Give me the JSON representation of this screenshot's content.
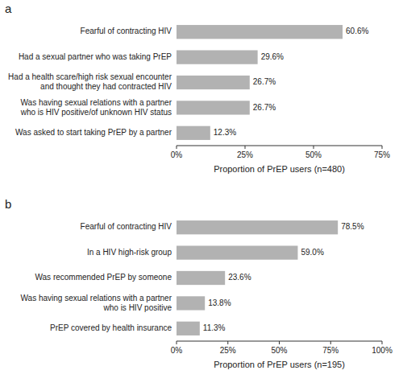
{
  "chart_data": [
    {
      "type": "bar",
      "orientation": "horizontal",
      "title": "a",
      "categories": [
        "Fearful of contracting HIV",
        "Had a sexual partner who was taking PrEP",
        "Had a health scare/high risk sexual encounter\nand thought they had contracted HIV",
        "Was having sexual relations with a partner\nwho is HIV positive/of unknown HIV status",
        "Was asked to start taking PrEP by a partner"
      ],
      "values": [
        60.6,
        29.6,
        26.7,
        26.7,
        12.3
      ],
      "value_labels": [
        "60.6%",
        "29.6%",
        "26.7%",
        "26.7%",
        "12.3%"
      ],
      "data_labels": true,
      "color": "#b2b2b2",
      "xlabel": "Proportion of PrEP users (n=480)",
      "xlim": [
        0,
        75
      ],
      "xticks": [
        {
          "value": 0,
          "label": "0%"
        },
        {
          "value": 25,
          "label": "25%"
        },
        {
          "value": 50,
          "label": "50%"
        },
        {
          "value": 75,
          "label": "75%"
        }
      ],
      "grid": false
    },
    {
      "type": "bar",
      "orientation": "horizontal",
      "title": "b",
      "categories": [
        "Fearful of contracting HIV",
        "In a HIV high-risk group",
        "Was recommended PrEP by someone",
        "Was having sexual relations with a partner\nwho is HIV positive",
        "PrEP covered by health insurance"
      ],
      "values": [
        78.5,
        59.0,
        23.6,
        13.8,
        11.3
      ],
      "value_labels": [
        "78.5%",
        "59.0%",
        "23.6%",
        "13.8%",
        "11.3%"
      ],
      "data_labels": true,
      "color": "#b2b2b2",
      "xlabel": "Proportion of PrEP users (n=195)",
      "xlim": [
        0,
        100
      ],
      "xticks": [
        {
          "value": 0,
          "label": "0%"
        },
        {
          "value": 25,
          "label": "25%"
        },
        {
          "value": 50,
          "label": "50%"
        },
        {
          "value": 75,
          "label": "75%"
        },
        {
          "value": 100,
          "label": "100%"
        }
      ],
      "grid": false
    }
  ]
}
